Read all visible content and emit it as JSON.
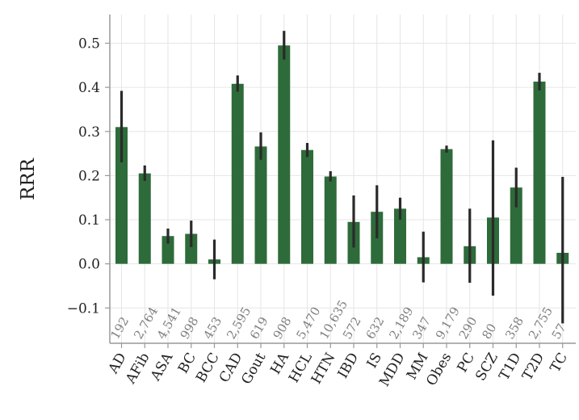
{
  "chart_data": {
    "type": "bar",
    "title": "",
    "xlabel": "",
    "ylabel": "RRR",
    "ylim": [
      -0.18,
      0.565
    ],
    "yticks": [
      -0.1,
      0.0,
      0.1,
      0.2,
      0.3,
      0.4,
      0.5
    ],
    "ytick_labels": [
      "−0.1",
      "0.0",
      "0.1",
      "0.2",
      "0.3",
      "0.4",
      "0.5"
    ],
    "grid": true,
    "legend": "none",
    "bar_color": "#2e6b3a",
    "error_color": "#2a2a2a",
    "categories": [
      "AD",
      "AFib",
      "ASA",
      "BC",
      "BCC",
      "CAD",
      "Gout",
      "HA",
      "HCL",
      "HTN",
      "IBD",
      "IS",
      "MDD",
      "MM",
      "Obes",
      "PC",
      "SCZ",
      "T1D",
      "T2D",
      "TC"
    ],
    "values": [
      0.31,
      0.205,
      0.063,
      0.068,
      0.01,
      0.408,
      0.266,
      0.495,
      0.258,
      0.198,
      0.095,
      0.118,
      0.125,
      0.015,
      0.26,
      0.04,
      0.105,
      0.173,
      0.413,
      0.025
    ],
    "err_low": [
      0.23,
      0.188,
      0.046,
      0.038,
      -0.035,
      0.39,
      0.236,
      0.463,
      0.242,
      0.187,
      0.037,
      0.058,
      0.1,
      -0.042,
      0.252,
      -0.043,
      -0.072,
      0.128,
      0.393,
      -0.135
    ],
    "err_high": [
      0.392,
      0.223,
      0.08,
      0.098,
      0.055,
      0.427,
      0.298,
      0.528,
      0.274,
      0.21,
      0.155,
      0.178,
      0.15,
      0.073,
      0.268,
      0.125,
      0.28,
      0.218,
      0.433,
      0.197
    ],
    "counts": [
      "192",
      "2,764",
      "4,541",
      "998",
      "453",
      "2,595",
      "619",
      "908",
      "5,470",
      "10,635",
      "572",
      "632",
      "2,189",
      "347",
      "9,179",
      "290",
      "80",
      "358",
      "2,755",
      "57"
    ]
  }
}
